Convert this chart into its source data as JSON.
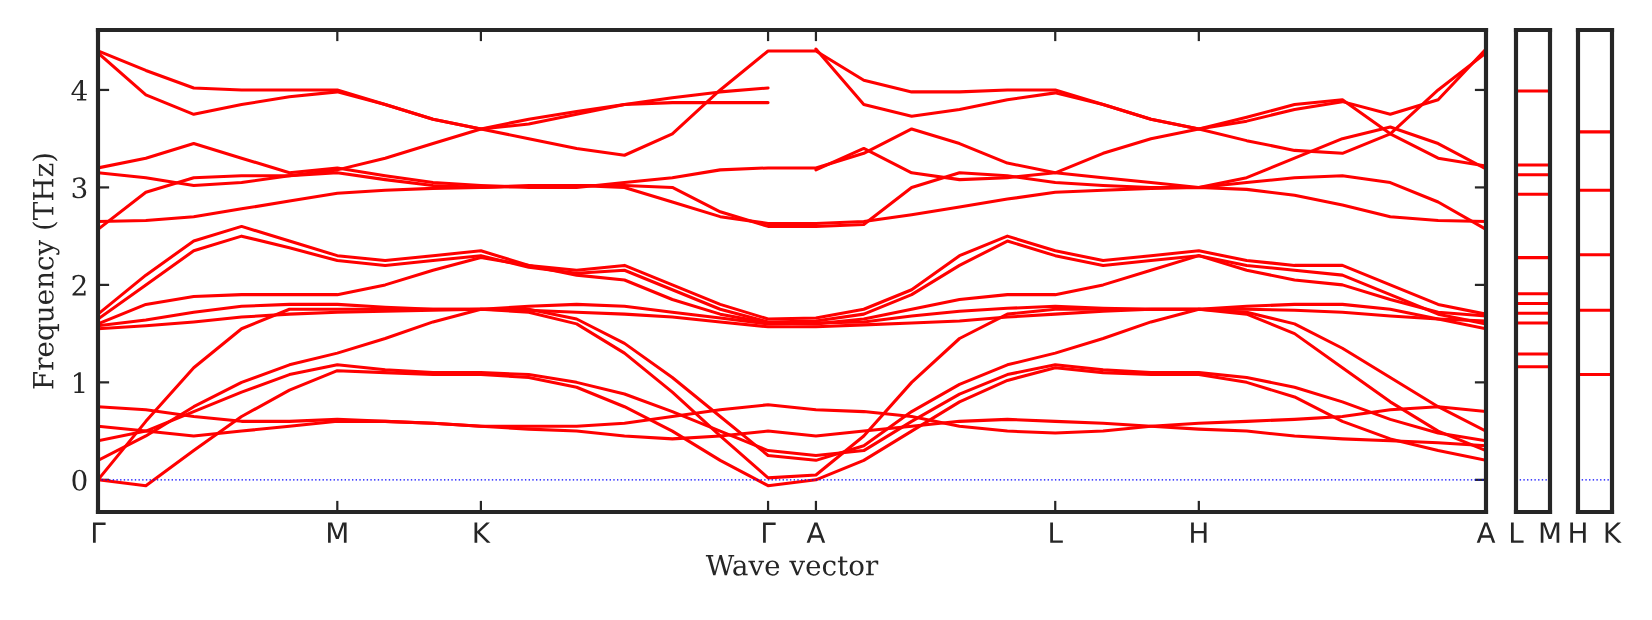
{
  "chart_data": [
    {
      "type": "line",
      "xlabel": "Wave vector",
      "ylabel": "Frequency (THz)",
      "ylim": [
        -0.33,
        4.615
      ],
      "categories": [
        "Γ",
        null,
        null,
        null,
        null,
        "M",
        null,
        null,
        "K",
        null,
        null,
        null,
        null,
        null,
        "Γ",
        "A",
        null,
        null,
        null,
        null,
        "L",
        null,
        null,
        "H",
        null,
        null,
        null,
        null,
        null,
        "A"
      ],
      "yticks": [
        0,
        1,
        2,
        3,
        4
      ],
      "grid": false,
      "line_style": "solid",
      "ref_lines": [
        {
          "axis": "y",
          "value": 0,
          "color": "#0000ff",
          "line_style": "dotted"
        }
      ],
      "series": [
        {
          "color": "#ff0000",
          "values": [
            4.4,
            4.2,
            4.02,
            4.0,
            4.0,
            4.0,
            3.85,
            3.7,
            3.6,
            3.5,
            3.4,
            3.33,
            3.55,
            4.0,
            4.4,
            4.4,
            4.1,
            3.98,
            3.98,
            4.0,
            4.0,
            3.85,
            3.7,
            3.6,
            3.48,
            3.38,
            3.35,
            3.55,
            4.0,
            4.38
          ]
        },
        {
          "color": "#ff0000",
          "values": [
            4.38,
            3.95,
            3.75,
            3.85,
            3.93,
            3.98,
            3.85,
            3.7,
            3.6,
            3.65,
            3.75,
            3.85,
            3.87,
            3.87,
            3.87,
            null,
            null,
            null,
            null,
            null,
            null,
            null,
            null,
            null,
            null,
            null,
            null,
            null,
            null,
            null
          ]
        },
        {
          "color": "#ff0000",
          "values": [
            null,
            null,
            null,
            null,
            null,
            null,
            null,
            null,
            null,
            null,
            null,
            null,
            null,
            null,
            null,
            4.42,
            3.85,
            3.73,
            3.8,
            3.9,
            3.97,
            3.85,
            3.7,
            3.6,
            3.68,
            3.8,
            3.88,
            3.75,
            3.9,
            4.42
          ]
        },
        {
          "color": "#ff0000",
          "values": [
            3.15,
            3.1,
            3.02,
            3.05,
            3.12,
            3.18,
            3.3,
            3.45,
            3.6,
            3.7,
            3.78,
            3.85,
            3.92,
            3.98,
            4.02,
            null,
            null,
            null,
            null,
            null,
            null,
            null,
            null,
            null,
            null,
            null,
            null,
            null,
            null,
            null
          ]
        },
        {
          "color": "#ff0000",
          "values": [
            null,
            null,
            null,
            null,
            null,
            null,
            null,
            null,
            null,
            null,
            null,
            null,
            null,
            null,
            null,
            3.18,
            3.4,
            3.15,
            3.08,
            3.1,
            3.15,
            3.35,
            3.5,
            3.6,
            3.72,
            3.85,
            3.9,
            3.55,
            3.3,
            3.22
          ]
        },
        {
          "color": "#ff0000",
          "values": [
            3.2,
            3.3,
            3.45,
            3.3,
            3.15,
            3.2,
            3.12,
            3.05,
            3.02,
            3.0,
            3.0,
            3.05,
            3.1,
            3.18,
            3.2,
            3.2,
            3.35,
            3.6,
            3.45,
            3.25,
            3.15,
            3.1,
            3.05,
            3.0,
            3.1,
            3.3,
            3.5,
            3.62,
            3.45,
            3.19
          ]
        },
        {
          "color": "#ff0000",
          "values": [
            2.65,
            2.66,
            2.7,
            2.78,
            2.86,
            2.94,
            2.97,
            2.99,
            3.0,
            3.01,
            3.02,
            3.0,
            2.85,
            2.7,
            2.63,
            2.63,
            2.65,
            2.72,
            2.8,
            2.88,
            2.95,
            2.97,
            2.99,
            3.0,
            2.98,
            2.92,
            2.82,
            2.7,
            2.66,
            2.65
          ]
        },
        {
          "color": "#ff0000",
          "values": [
            2.57,
            2.95,
            3.1,
            3.12,
            3.12,
            3.15,
            3.08,
            3.02,
            3.0,
            3.02,
            3.02,
            3.02,
            3.0,
            2.75,
            2.6,
            2.6,
            2.62,
            3.0,
            3.15,
            3.12,
            3.05,
            3.02,
            3.0,
            3.0,
            3.05,
            3.1,
            3.12,
            3.05,
            2.85,
            2.57
          ]
        },
        {
          "color": "#ff0000",
          "values": [
            1.7,
            2.1,
            2.45,
            2.6,
            2.45,
            2.3,
            2.25,
            2.3,
            2.35,
            2.2,
            2.15,
            2.2,
            2.0,
            1.8,
            1.65,
            1.66,
            1.75,
            1.95,
            2.3,
            2.5,
            2.35,
            2.25,
            2.3,
            2.35,
            2.25,
            2.2,
            2.2,
            2.0,
            1.8,
            1.7
          ]
        },
        {
          "color": "#ff0000",
          "values": [
            1.65,
            2.0,
            2.35,
            2.5,
            2.38,
            2.25,
            2.2,
            2.25,
            2.3,
            2.18,
            2.12,
            2.15,
            1.95,
            1.75,
            1.62,
            1.63,
            1.7,
            1.9,
            2.2,
            2.45,
            2.3,
            2.2,
            2.25,
            2.3,
            2.2,
            2.15,
            2.1,
            1.9,
            1.7,
            1.6
          ]
        },
        {
          "color": "#ff0000",
          "values": [
            1.6,
            1.8,
            1.88,
            1.9,
            1.9,
            1.9,
            2.0,
            2.15,
            2.28,
            2.2,
            2.1,
            2.05,
            1.85,
            1.7,
            1.61,
            1.6,
            1.65,
            1.75,
            1.85,
            1.9,
            1.9,
            2.0,
            2.15,
            2.3,
            2.15,
            2.05,
            2.0,
            1.85,
            1.72,
            1.68
          ]
        },
        {
          "color": "#ff0000",
          "values": [
            1.58,
            1.64,
            1.72,
            1.78,
            1.8,
            1.8,
            1.77,
            1.75,
            1.75,
            1.78,
            1.8,
            1.78,
            1.72,
            1.66,
            1.6,
            1.61,
            1.62,
            1.68,
            1.73,
            1.76,
            1.78,
            1.76,
            1.75,
            1.75,
            1.78,
            1.8,
            1.8,
            1.75,
            1.65,
            1.55
          ]
        },
        {
          "color": "#ff0000",
          "values": [
            1.55,
            1.58,
            1.62,
            1.67,
            1.7,
            1.72,
            1.73,
            1.74,
            1.75,
            1.74,
            1.72,
            1.7,
            1.67,
            1.62,
            1.57,
            1.57,
            1.59,
            1.61,
            1.63,
            1.67,
            1.7,
            1.73,
            1.75,
            1.75,
            1.75,
            1.74,
            1.72,
            1.68,
            1.65,
            1.63
          ]
        },
        {
          "color": "#ff0000",
          "values": [
            0.0,
            0.6,
            1.15,
            1.55,
            1.75,
            1.75,
            1.75,
            1.75,
            1.75,
            1.72,
            1.6,
            1.3,
            0.9,
            0.45,
            0.02,
            0.05,
            0.45,
            1.0,
            1.45,
            1.7,
            1.75,
            1.75,
            1.75,
            1.75,
            1.7,
            1.5,
            1.15,
            0.8,
            0.5,
            0.3
          ]
        },
        {
          "color": "#ff0000",
          "values": [
            0.2,
            0.45,
            0.75,
            1.0,
            1.18,
            1.3,
            1.45,
            1.62,
            1.75,
            1.75,
            1.65,
            1.4,
            1.05,
            0.65,
            0.25,
            0.2,
            0.35,
            0.7,
            0.98,
            1.18,
            1.3,
            1.45,
            1.62,
            1.75,
            1.72,
            1.6,
            1.35,
            1.05,
            0.75,
            0.5
          ]
        },
        {
          "color": "#ff0000",
          "values": [
            0.4,
            0.5,
            0.7,
            0.9,
            1.08,
            1.18,
            1.13,
            1.1,
            1.1,
            1.08,
            1.0,
            0.88,
            0.7,
            0.5,
            0.3,
            0.25,
            0.3,
            0.6,
            0.88,
            1.08,
            1.18,
            1.13,
            1.1,
            1.1,
            1.05,
            0.95,
            0.8,
            0.62,
            0.48,
            0.4
          ]
        },
        {
          "color": "#ff0000",
          "values": [
            0.0,
            -0.06,
            0.3,
            0.65,
            0.92,
            1.12,
            1.1,
            1.08,
            1.08,
            1.05,
            0.95,
            0.75,
            0.5,
            0.2,
            -0.06,
            0.0,
            0.2,
            0.5,
            0.8,
            1.02,
            1.15,
            1.1,
            1.08,
            1.08,
            1.0,
            0.85,
            0.6,
            0.42,
            0.3,
            0.2
          ]
        },
        {
          "color": "#ff0000",
          "values": [
            0.75,
            0.72,
            0.65,
            0.6,
            0.6,
            0.62,
            0.6,
            0.58,
            0.55,
            0.55,
            0.55,
            0.58,
            0.65,
            0.72,
            0.77,
            0.72,
            0.7,
            0.65,
            0.55,
            0.5,
            0.48,
            0.5,
            0.55,
            0.58,
            0.6,
            0.62,
            0.65,
            0.72,
            0.75,
            0.7
          ]
        },
        {
          "color": "#ff0000",
          "values": [
            0.55,
            0.5,
            0.45,
            0.5,
            0.55,
            0.6,
            0.6,
            0.58,
            0.55,
            0.52,
            0.5,
            0.45,
            0.42,
            0.45,
            0.5,
            0.45,
            0.5,
            0.55,
            0.6,
            0.62,
            0.6,
            0.58,
            0.55,
            0.52,
            0.5,
            0.45,
            0.42,
            0.4,
            0.38,
            0.35
          ]
        }
      ]
    },
    {
      "type": "line",
      "categories": [
        "L",
        "M"
      ],
      "ylim": [
        -0.33,
        4.615
      ],
      "tick_labels": "x",
      "ref_lines": [
        {
          "axis": "y",
          "value": 0,
          "color": "#0000ff",
          "line_style": "dotted"
        }
      ],
      "series": [
        {
          "color": "#ff0000",
          "values": [
            3.99,
            3.99
          ]
        },
        {
          "color": "#ff0000",
          "values": [
            3.23,
            3.23
          ]
        },
        {
          "color": "#ff0000",
          "values": [
            3.13,
            3.13
          ]
        },
        {
          "color": "#ff0000",
          "values": [
            2.93,
            2.93
          ]
        },
        {
          "color": "#ff0000",
          "values": [
            2.28,
            2.28
          ]
        },
        {
          "color": "#ff0000",
          "values": [
            1.91,
            1.91
          ]
        },
        {
          "color": "#ff0000",
          "values": [
            1.81,
            1.81
          ]
        },
        {
          "color": "#ff0000",
          "values": [
            1.71,
            1.71
          ]
        },
        {
          "color": "#ff0000",
          "values": [
            1.61,
            1.61
          ]
        },
        {
          "color": "#ff0000",
          "values": [
            1.29,
            1.29
          ]
        },
        {
          "color": "#ff0000",
          "values": [
            1.16,
            1.16
          ]
        }
      ]
    },
    {
      "type": "line",
      "categories": [
        "H",
        "K"
      ],
      "ylim": [
        -0.33,
        4.615
      ],
      "tick_labels": "x",
      "ref_lines": [
        {
          "axis": "y",
          "value": 0,
          "color": "#0000ff",
          "line_style": "dotted"
        }
      ],
      "series": [
        {
          "color": "#ff0000",
          "values": [
            3.57,
            3.57
          ]
        },
        {
          "color": "#ff0000",
          "values": [
            2.97,
            2.97
          ]
        },
        {
          "color": "#ff0000",
          "values": [
            2.31,
            2.31
          ]
        },
        {
          "color": "#ff0000",
          "values": [
            1.74,
            1.74
          ]
        },
        {
          "color": "#ff0000",
          "values": [
            1.08,
            1.08
          ]
        }
      ]
    }
  ]
}
